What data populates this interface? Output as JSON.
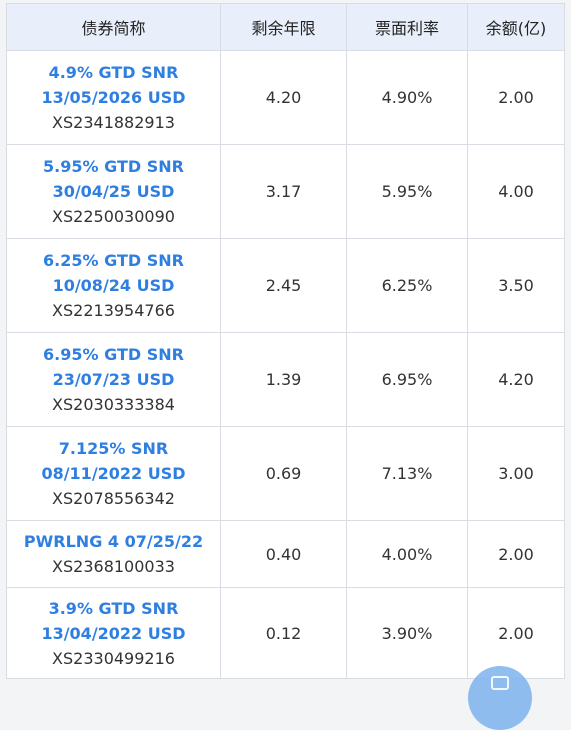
{
  "table": {
    "headers": [
      "债券简称",
      "剩余年限",
      "票面利率",
      "余额(亿)"
    ],
    "rows": [
      {
        "name": "4.9% GTD SNR\n13/05/2026 USD",
        "code": "XS2341882913",
        "remaining": "4.20",
        "coupon": "4.90%",
        "balance": "2.00"
      },
      {
        "name": "5.95% GTD SNR\n30/04/25 USD",
        "code": "XS2250030090",
        "remaining": "3.17",
        "coupon": "5.95%",
        "balance": "4.00"
      },
      {
        "name": "6.25% GTD SNR\n10/08/24 USD",
        "code": "XS2213954766",
        "remaining": "2.45",
        "coupon": "6.25%",
        "balance": "3.50"
      },
      {
        "name": "6.95% GTD SNR\n23/07/23 USD",
        "code": "XS2030333384",
        "remaining": "1.39",
        "coupon": "6.95%",
        "balance": "4.20"
      },
      {
        "name": "7.125% SNR\n08/11/2022 USD",
        "code": "XS2078556342",
        "remaining": "0.69",
        "coupon": "7.13%",
        "balance": "3.00"
      },
      {
        "name": "PWRLNG 4 07/25/22",
        "code": "XS2368100033",
        "remaining": "0.40",
        "coupon": "4.00%",
        "balance": "2.00"
      },
      {
        "name": "3.9% GTD SNR\n13/04/2022 USD",
        "code": "XS2330499216",
        "remaining": "0.12",
        "coupon": "3.90%",
        "balance": "2.00"
      }
    ]
  },
  "floating_button": {
    "icon": "chat-icon"
  },
  "colors": {
    "header_bg": "#e8effa",
    "link_blue": "#2f7fe0",
    "border": "#d9dce2",
    "fab": "#7eb3ee"
  }
}
